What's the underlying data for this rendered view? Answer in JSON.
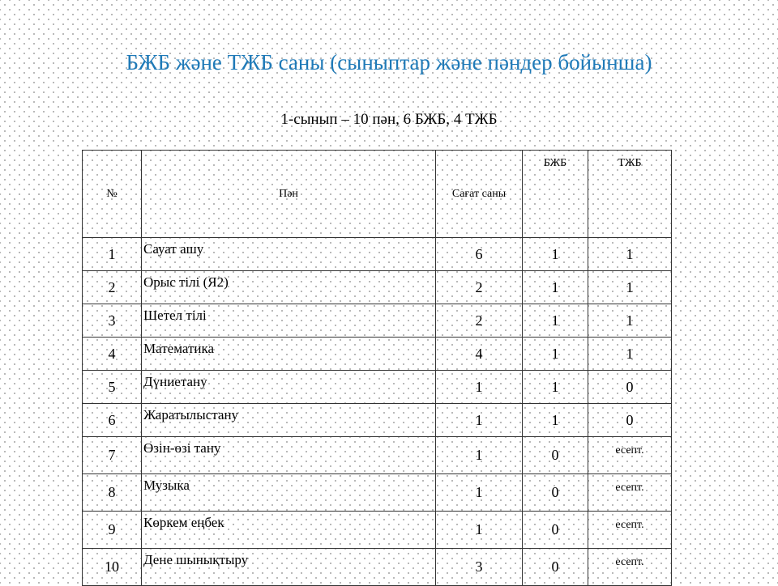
{
  "title": "БЖБ және ТЖБ саны (сыныптар және пәндер бойынша)",
  "subtitle": "1-сынып  – 10 пән, 6 БЖБ, 4 ТЖБ",
  "table": {
    "headers": [
      "№",
      "Пән",
      "Сағат саны",
      "БЖБ",
      "ТЖБ"
    ],
    "rows": [
      [
        "1",
        "Сауат  ашу",
        "6",
        "1",
        "1"
      ],
      [
        "2",
        "Орыс  тілі (Я2)",
        "2",
        "1",
        "1"
      ],
      [
        "3",
        "Шетел  тілі",
        "2",
        "1",
        "1"
      ],
      [
        "4",
        "Математика",
        "4",
        "1",
        "1"
      ],
      [
        "5",
        "Дүниетану",
        "1",
        "1",
        "0"
      ],
      [
        "6",
        "Жаратылыстану",
        "1",
        "1",
        "0"
      ],
      [
        "7",
        "Өзін-өзі  тану",
        "1",
        "0",
        "есепт."
      ],
      [
        "8",
        "Музыка",
        "1",
        "0",
        "есепт."
      ],
      [
        "9",
        "Көркем  еңбек",
        "1",
        "0",
        "есепт."
      ],
      [
        "10",
        "Дене  шынықтыру",
        "3",
        "0",
        "есепт."
      ]
    ]
  },
  "colors": {
    "title": "#1f7ab8"
  }
}
